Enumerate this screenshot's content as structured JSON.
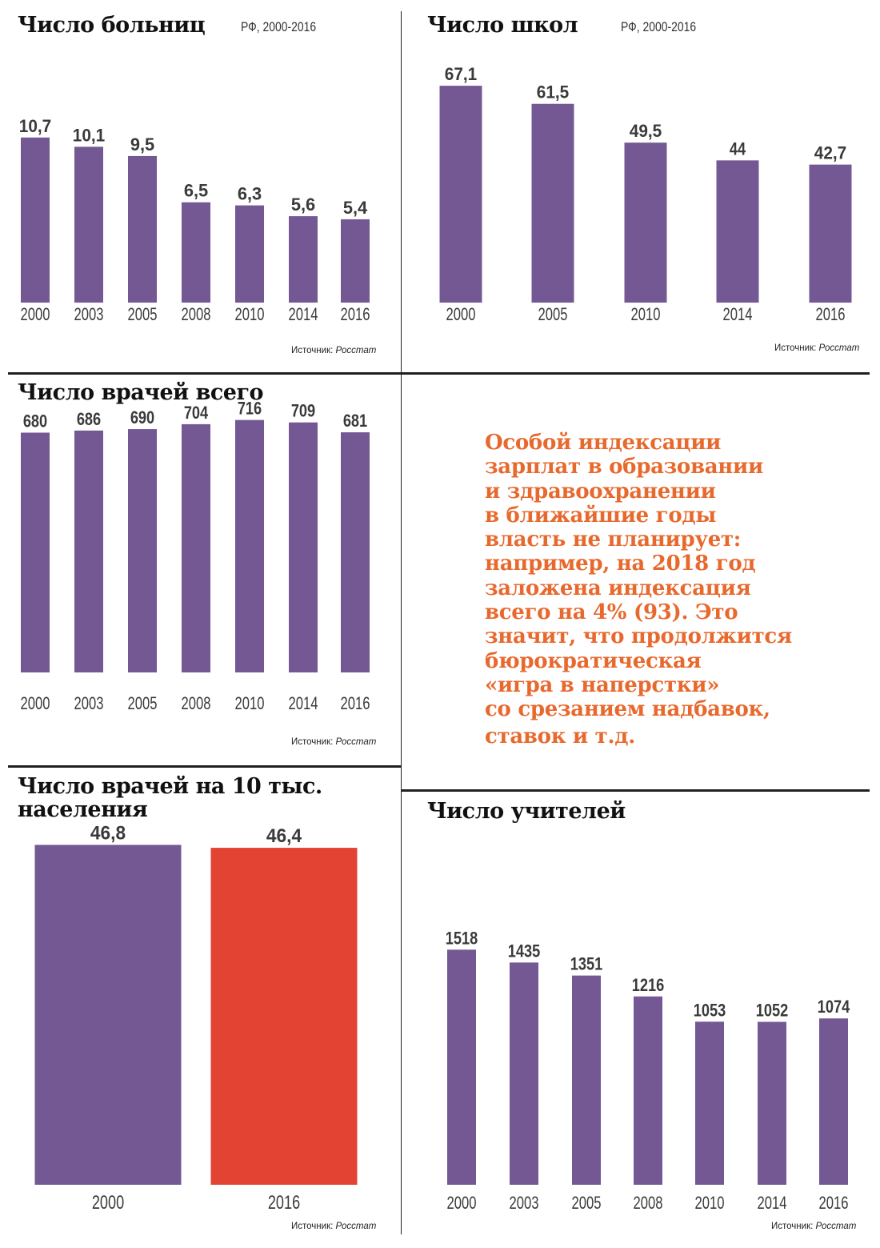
{
  "colors": {
    "bar": "#735894",
    "highlight": "#e34332",
    "text": "#231f20",
    "note": "#e8692d"
  },
  "note_lines": [
    "Особой индексации",
    "зарплат в образовании",
    "и здравоохранении",
    "в ближайшие годы",
    "власть не планирует:",
    "например, на 2018 год",
    "заложена индексация",
    "всего на 4% (93). Это",
    "значит, что продолжится",
    "бюрократическая",
    "«игра в наперстки»",
    "со срезанием надбавок,",
    "ставок и т.д."
  ],
  "chart_data": [
    {
      "id": "hospitals",
      "type": "bar",
      "title": "Число больниц",
      "subtitle": "РФ, 2000-2016",
      "source_label": "Источник:",
      "source_name": "Росстат",
      "categories": [
        "2000",
        "2003",
        "2005",
        "2008",
        "2010",
        "2014",
        "2016"
      ],
      "values": [
        10.7,
        10.1,
        9.5,
        6.5,
        6.3,
        5.6,
        5.4
      ],
      "labels": [
        "10,7",
        "10,1",
        "9,5",
        "6,5",
        "6,3",
        "5,6",
        "5,4"
      ],
      "ylim": [
        0,
        16.5
      ]
    },
    {
      "id": "schools",
      "type": "bar",
      "title": "Число школ",
      "subtitle": "РФ, 2000-2016",
      "source_label": "Источник:",
      "source_name": "Росстат",
      "categories": [
        "2000",
        "2005",
        "2010",
        "2014",
        "2016"
      ],
      "values": [
        67.1,
        61.5,
        49.5,
        44,
        42.7
      ],
      "labels": [
        "67,1",
        "61,5",
        "49,5",
        "44",
        "42,7"
      ],
      "ylim": [
        0,
        81
      ]
    },
    {
      "id": "doctors_total",
      "type": "bar",
      "title": "Число врачей всего",
      "subtitle": "",
      "source_label": "Источник:",
      "source_name": "Росстат",
      "categories": [
        "2000",
        "2003",
        "2005",
        "2008",
        "2010",
        "2014",
        "2016"
      ],
      "values": [
        680,
        686,
        690,
        704,
        716,
        709,
        681
      ],
      "labels": [
        "680",
        "686",
        "690",
        "704",
        "716",
        "709",
        "681"
      ],
      "ylim": [
        0,
        840
      ]
    },
    {
      "id": "doctors_per_10k",
      "type": "bar",
      "title": "Число врачей на 10 тыс. населения",
      "subtitle": "",
      "source_label": "Источник:",
      "source_name": "Росстат",
      "categories": [
        "2000",
        "2016"
      ],
      "values": [
        46.8,
        46.4
      ],
      "labels": [
        "46,8",
        "46,4"
      ],
      "highlight_index": 1,
      "ylim": [
        0,
        48.5
      ]
    },
    {
      "id": "teachers",
      "type": "bar",
      "title": "Число учителей",
      "subtitle": "",
      "source_label": "Источник:",
      "source_name": "Росстат",
      "categories": [
        "2000",
        "2003",
        "2005",
        "2008",
        "2010",
        "2014",
        "2016"
      ],
      "values": [
        1518,
        1435,
        1351,
        1216,
        1053,
        1052,
        1074
      ],
      "labels": [
        "1518",
        "1435",
        "1351",
        "1216",
        "1053",
        "1052",
        "1074"
      ],
      "ylim": [
        0,
        2140
      ]
    }
  ]
}
